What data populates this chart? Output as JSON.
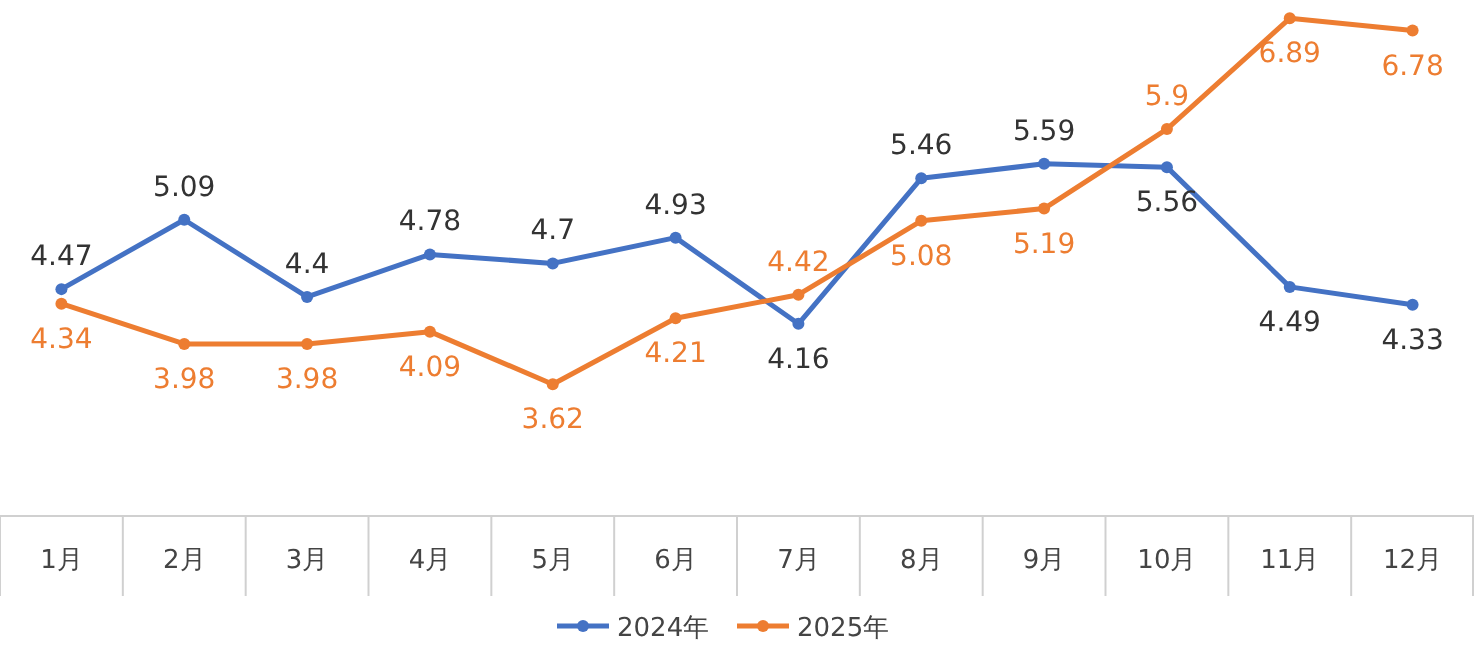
{
  "chart_data": {
    "type": "line",
    "categories": [
      "1月",
      "2月",
      "3月",
      "4月",
      "5月",
      "6月",
      "7月",
      "8月",
      "9月",
      "10月",
      "11月",
      "12月"
    ],
    "series": [
      {
        "name": "2024年",
        "color": "#4472c4",
        "values": [
          4.47,
          5.09,
          4.4,
          4.78,
          4.7,
          4.93,
          4.16,
          5.46,
          5.59,
          5.56,
          4.49,
          4.33
        ]
      },
      {
        "name": "2025年",
        "color": "#ed7d31",
        "values": [
          4.34,
          3.98,
          3.98,
          4.09,
          3.62,
          4.21,
          4.42,
          5.08,
          5.19,
          5.9,
          6.89,
          6.78
        ]
      }
    ],
    "data_labels": true,
    "legend": "bottom",
    "marker": "circle",
    "grid": false
  }
}
